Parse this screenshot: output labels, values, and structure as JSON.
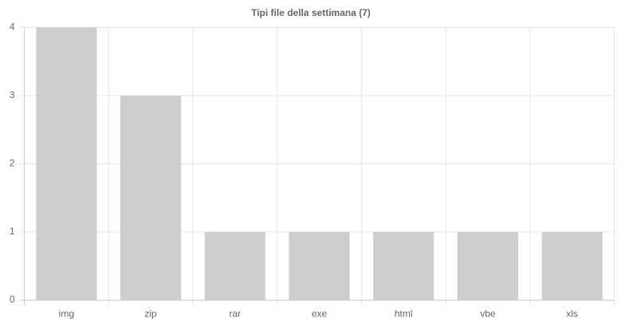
{
  "chart_data": {
    "type": "bar",
    "title": "Tipi file della settimana (7)",
    "categories": [
      "img",
      "zip",
      "rar",
      "exe",
      "html",
      "vbe",
      "xls"
    ],
    "values": [
      4,
      3,
      1,
      1,
      1,
      1,
      1
    ],
    "color": "#cdcdcf",
    "ylim": [
      0,
      4
    ],
    "yticks": [
      0,
      1,
      2,
      3,
      4
    ],
    "grid": true
  }
}
